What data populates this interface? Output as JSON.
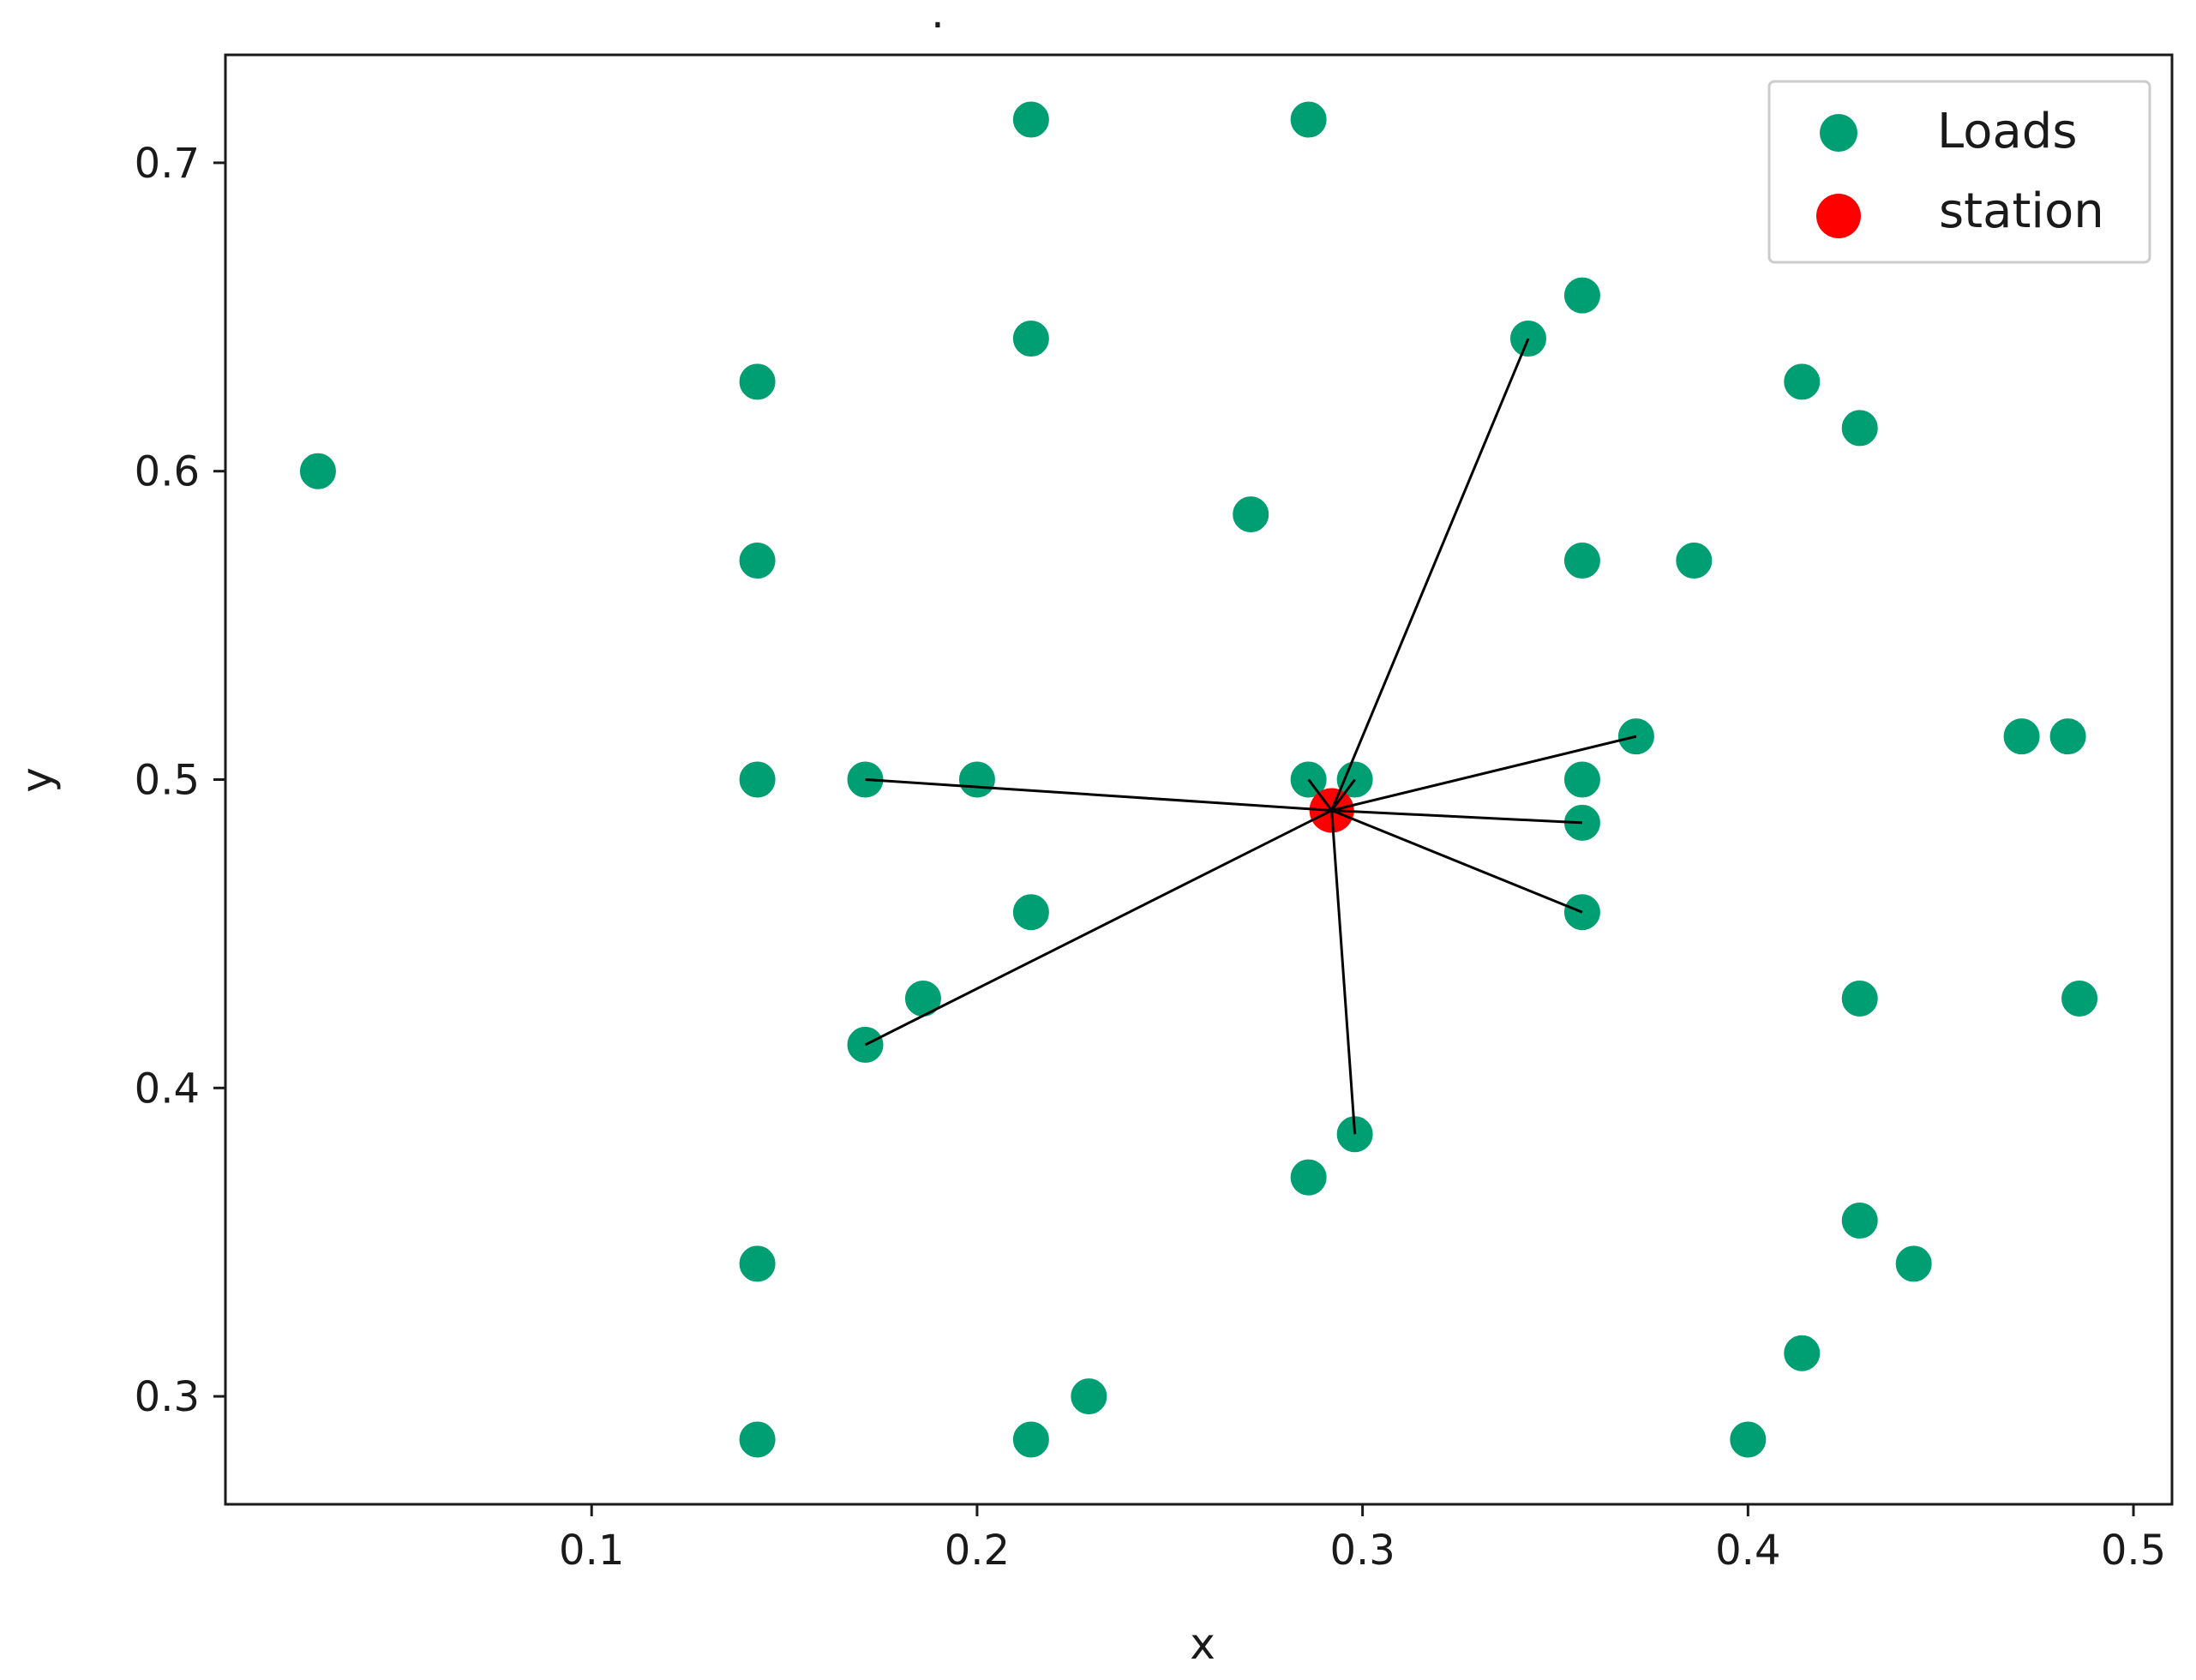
{
  "chart_data": {
    "type": "scatter",
    "title": ".",
    "xlabel": "x",
    "ylabel": "y",
    "xlim": [
      0.005,
      0.51
    ],
    "ylim": [
      0.265,
      0.735
    ],
    "xticks": [
      0.1,
      0.2,
      0.3,
      0.4,
      0.5
    ],
    "yticks": [
      0.3,
      0.4,
      0.5,
      0.6,
      0.7
    ],
    "xtick_labels": [
      "0.1",
      "0.2",
      "0.3",
      "0.4",
      "0.5"
    ],
    "ytick_labels": [
      "0.3",
      "0.4",
      "0.5",
      "0.6",
      "0.7"
    ],
    "grid": false,
    "legend_position": "top-right",
    "series": [
      {
        "name": "Loads",
        "color": "#009e73",
        "points": [
          {
            "x": 0.214,
            "y": 0.714
          },
          {
            "x": 0.286,
            "y": 0.714
          },
          {
            "x": 0.357,
            "y": 0.657
          },
          {
            "x": 0.343,
            "y": 0.643
          },
          {
            "x": 0.214,
            "y": 0.643
          },
          {
            "x": 0.143,
            "y": 0.629
          },
          {
            "x": 0.414,
            "y": 0.629
          },
          {
            "x": 0.429,
            "y": 0.614
          },
          {
            "x": 0.029,
            "y": 0.6
          },
          {
            "x": 0.271,
            "y": 0.586
          },
          {
            "x": 0.143,
            "y": 0.571
          },
          {
            "x": 0.357,
            "y": 0.571
          },
          {
            "x": 0.386,
            "y": 0.571
          },
          {
            "x": 0.371,
            "y": 0.514
          },
          {
            "x": 0.471,
            "y": 0.514
          },
          {
            "x": 0.483,
            "y": 0.514
          },
          {
            "x": 0.143,
            "y": 0.5
          },
          {
            "x": 0.171,
            "y": 0.5
          },
          {
            "x": 0.2,
            "y": 0.5
          },
          {
            "x": 0.286,
            "y": 0.5
          },
          {
            "x": 0.298,
            "y": 0.5
          },
          {
            "x": 0.357,
            "y": 0.5
          },
          {
            "x": 0.357,
            "y": 0.486
          },
          {
            "x": 0.214,
            "y": 0.457
          },
          {
            "x": 0.357,
            "y": 0.457
          },
          {
            "x": 0.186,
            "y": 0.429
          },
          {
            "x": 0.429,
            "y": 0.429
          },
          {
            "x": 0.486,
            "y": 0.429
          },
          {
            "x": 0.171,
            "y": 0.414
          },
          {
            "x": 0.298,
            "y": 0.385
          },
          {
            "x": 0.286,
            "y": 0.371
          },
          {
            "x": 0.429,
            "y": 0.357
          },
          {
            "x": 0.143,
            "y": 0.343
          },
          {
            "x": 0.443,
            "y": 0.343
          },
          {
            "x": 0.414,
            "y": 0.314
          },
          {
            "x": 0.229,
            "y": 0.3
          },
          {
            "x": 0.143,
            "y": 0.286
          },
          {
            "x": 0.214,
            "y": 0.286
          },
          {
            "x": 0.4,
            "y": 0.286
          }
        ]
      },
      {
        "name": "station",
        "color": "#ff0000",
        "points": [
          {
            "x": 0.292,
            "y": 0.49
          }
        ]
      }
    ],
    "connections": [
      {
        "from": [
          0.292,
          0.49
        ],
        "to": [
          0.343,
          0.643
        ]
      },
      {
        "from": [
          0.292,
          0.49
        ],
        "to": [
          0.371,
          0.514
        ]
      },
      {
        "from": [
          0.292,
          0.49
        ],
        "to": [
          0.357,
          0.486
        ]
      },
      {
        "from": [
          0.292,
          0.49
        ],
        "to": [
          0.357,
          0.457
        ]
      },
      {
        "from": [
          0.292,
          0.49
        ],
        "to": [
          0.298,
          0.385
        ]
      },
      {
        "from": [
          0.292,
          0.49
        ],
        "to": [
          0.171,
          0.414
        ]
      },
      {
        "from": [
          0.292,
          0.49
        ],
        "to": [
          0.171,
          0.5
        ]
      },
      {
        "from": [
          0.292,
          0.49
        ],
        "to": [
          0.286,
          0.5
        ]
      },
      {
        "from": [
          0.292,
          0.49
        ],
        "to": [
          0.298,
          0.5
        ]
      }
    ],
    "connection_color": "#000000"
  }
}
